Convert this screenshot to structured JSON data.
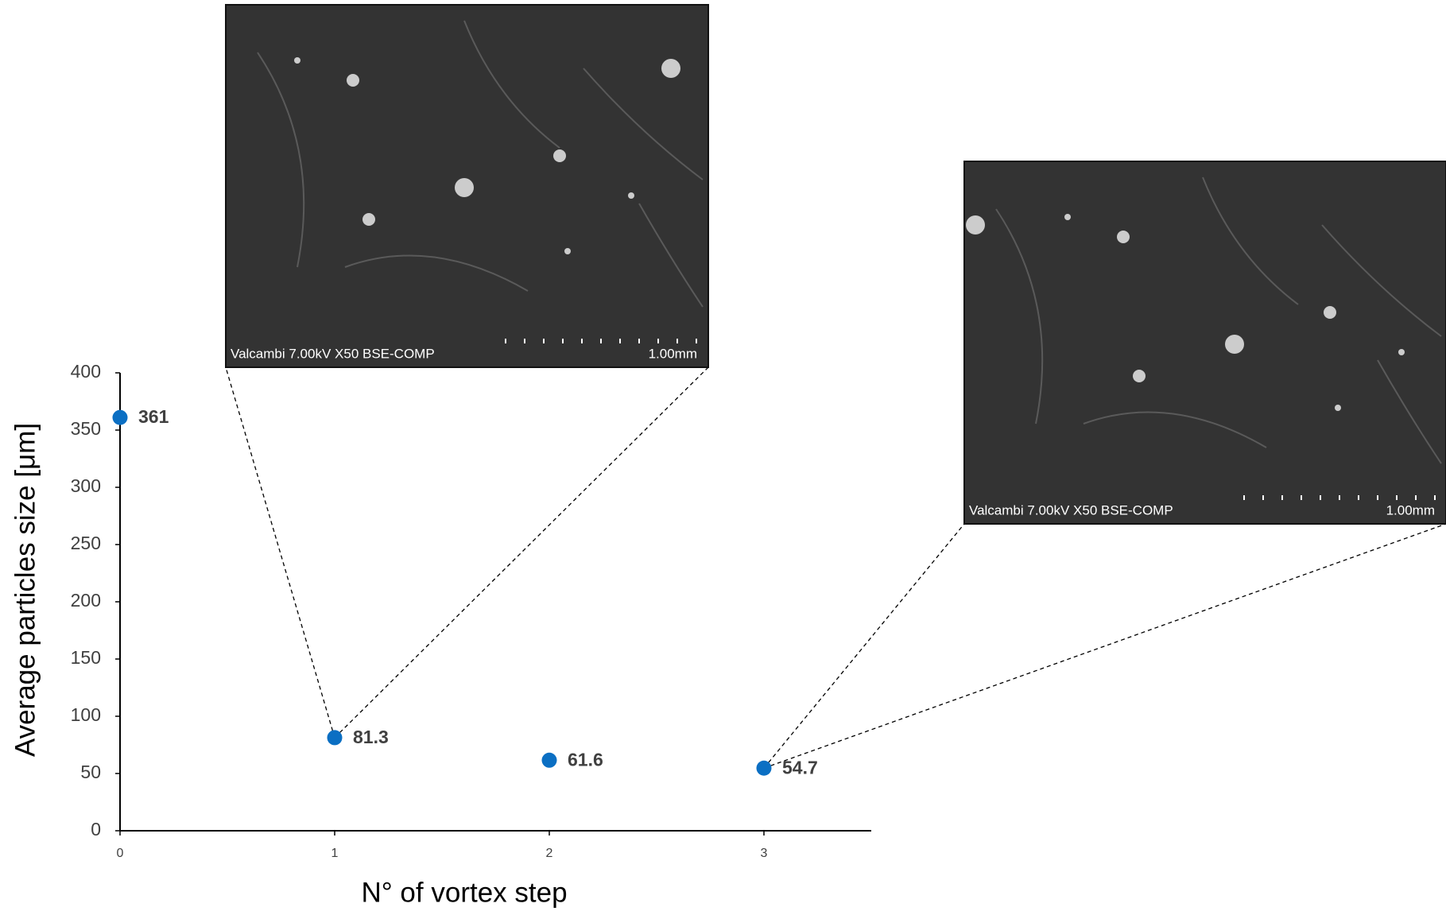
{
  "chart_data": {
    "type": "scatter",
    "x_label": "N° of vortex step",
    "y_label": "Average particles size [μm]",
    "x": [
      0,
      1,
      2,
      3
    ],
    "values": [
      361,
      81.3,
      61.6,
      54.7
    ],
    "color": "#0b6fc3",
    "xlim": [
      0,
      3.5
    ],
    "xticks": [
      0,
      1,
      2,
      3
    ],
    "ylim": [
      0,
      400
    ],
    "yticks": [
      0,
      50,
      100,
      150,
      200,
      250,
      300,
      350,
      400
    ],
    "insets": [
      {
        "caption": "Valcambi 7.00kV X50 BSE-COMP",
        "scale_label": "1.00mm"
      },
      {
        "caption": "Valcambi 7.00kV X50 BSE-COMP",
        "scale_label": "1.00mm"
      }
    ]
  }
}
